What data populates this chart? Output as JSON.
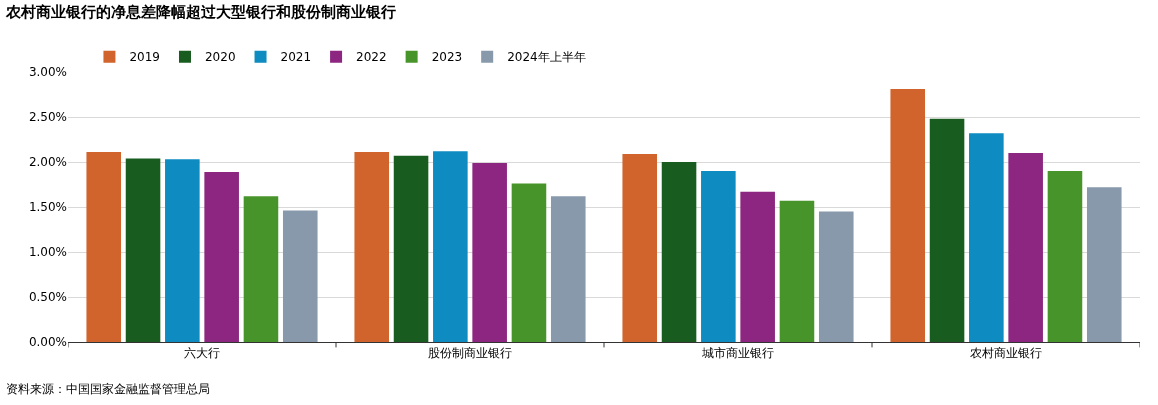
{
  "chart_data": {
    "type": "bar",
    "title": "农村商业银行的净息差降幅超过大型银行和股份制商业银行",
    "categories": [
      "六大行",
      "股份制商业银行",
      "城市商业银行",
      "农村商业银行"
    ],
    "series": [
      {
        "name": "2019",
        "color": "#d0642c",
        "values": [
          2.11,
          2.11,
          2.09,
          2.81
        ]
      },
      {
        "name": "2020",
        "color": "#185c20",
        "values": [
          2.04,
          2.07,
          2.0,
          2.48
        ]
      },
      {
        "name": "2021",
        "color": "#0e8bc0",
        "values": [
          2.03,
          2.12,
          1.9,
          2.32
        ]
      },
      {
        "name": "2022",
        "color": "#8c2680",
        "values": [
          1.89,
          1.99,
          1.67,
          2.1
        ]
      },
      {
        "name": "2023",
        "color": "#47942a",
        "values": [
          1.62,
          1.76,
          1.57,
          1.9
        ]
      },
      {
        "name": "2024年上半年",
        "color": "#8799aa",
        "values": [
          1.46,
          1.62,
          1.45,
          1.72
        ]
      }
    ],
    "ylim": [
      0,
      3
    ],
    "yticks": [
      {
        "value": 0,
        "label": "0.00%"
      },
      {
        "value": 0.5,
        "label": "0.50%"
      },
      {
        "value": 1,
        "label": "1.00%"
      },
      {
        "value": 1.5,
        "label": "1.50%"
      },
      {
        "value": 2,
        "label": "2.00%"
      },
      {
        "value": 2.5,
        "label": "2.50%"
      },
      {
        "value": 3,
        "label": "3.00%"
      }
    ],
    "grid": "y",
    "legend": "top left",
    "annotations": [
      "资料来源：中国国家金融监督管理总局"
    ]
  }
}
